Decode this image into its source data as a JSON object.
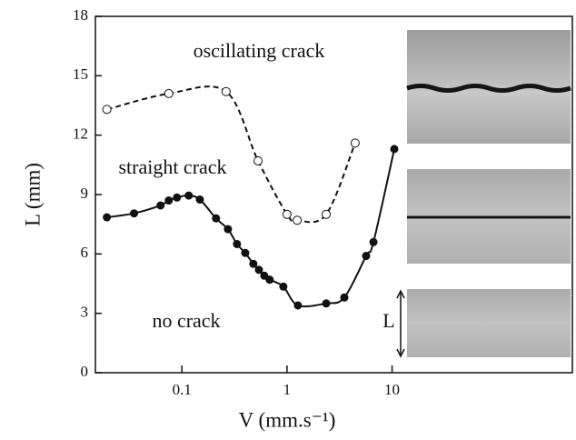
{
  "chart_data": {
    "type": "line",
    "xlabel": "V (mm.s⁻¹)",
    "ylabel": "L (mm)",
    "xscale": "log",
    "xlim": [
      0.015,
      520
    ],
    "ylim": [
      0,
      18
    ],
    "xticks": [
      0.1,
      1,
      10
    ],
    "yticks": [
      0,
      3,
      6,
      9,
      12,
      15,
      18
    ],
    "annotations": [
      "oscillating crack",
      "straight crack",
      "no crack",
      "L"
    ],
    "series": [
      {
        "color": "#111111",
        "marker": "filled",
        "linestyle": "solid",
        "x": [
          0.0193,
          0.035,
          0.0626,
          0.0749,
          0.0896,
          0.116,
          0.148,
          0.211,
          0.274,
          0.334,
          0.4,
          0.478,
          0.54,
          0.608,
          0.684,
          0.923,
          1.27,
          2.36,
          3.51,
          5.66,
          6.65,
          10.5
        ],
        "values": [
          7.85,
          8.05,
          8.45,
          8.7,
          8.85,
          8.95,
          8.75,
          7.8,
          7.25,
          6.5,
          6.05,
          5.5,
          5.2,
          4.9,
          4.7,
          4.35,
          3.4,
          3.5,
          3.8,
          5.9,
          6.6,
          11.3
        ]
      },
      {
        "color": "#111111",
        "marker": "open",
        "linestyle": "dashed",
        "x": [
          0.0193,
          0.075,
          0.263,
          0.53,
          1.0,
          1.25,
          2.36,
          4.45
        ],
        "values": [
          13.3,
          14.1,
          14.2,
          10.7,
          8.0,
          7.7,
          8.0,
          11.6
        ]
      }
    ]
  }
}
